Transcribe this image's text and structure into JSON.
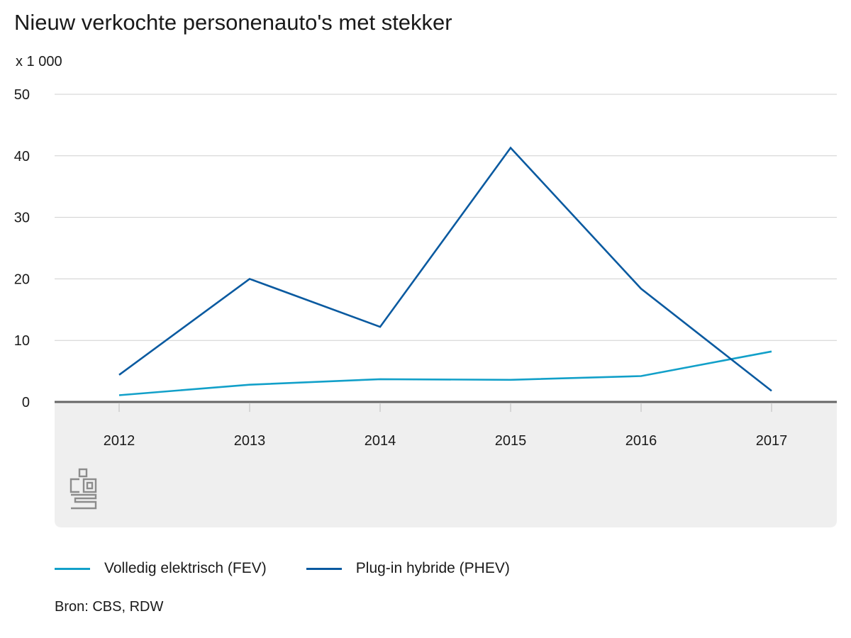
{
  "chart_data": {
    "type": "line",
    "title": "Nieuw verkochte personenauto's met stekker",
    "unit_label": "x 1 000",
    "x": [
      "2012",
      "2013",
      "2014",
      "2015",
      "2016",
      "2017"
    ],
    "series": [
      {
        "name": "Volledig elektrisch (FEV)",
        "color": "#12a0c9",
        "values": [
          1.1,
          2.8,
          3.7,
          3.6,
          4.2,
          8.2
        ]
      },
      {
        "name": "Plug-in hybride (PHEV)",
        "color": "#0a5aa0",
        "values": [
          4.4,
          20.0,
          12.2,
          41.3,
          18.4,
          1.8
        ]
      }
    ],
    "ylim": [
      0,
      50
    ],
    "yticks": [
      "0",
      "10",
      "20",
      "30",
      "40",
      "50"
    ],
    "grid": true,
    "legend_position": "bottom-left",
    "source": "Bron: CBS, RDW"
  },
  "branding": {
    "logo_icon": "cbs-logo-icon"
  }
}
